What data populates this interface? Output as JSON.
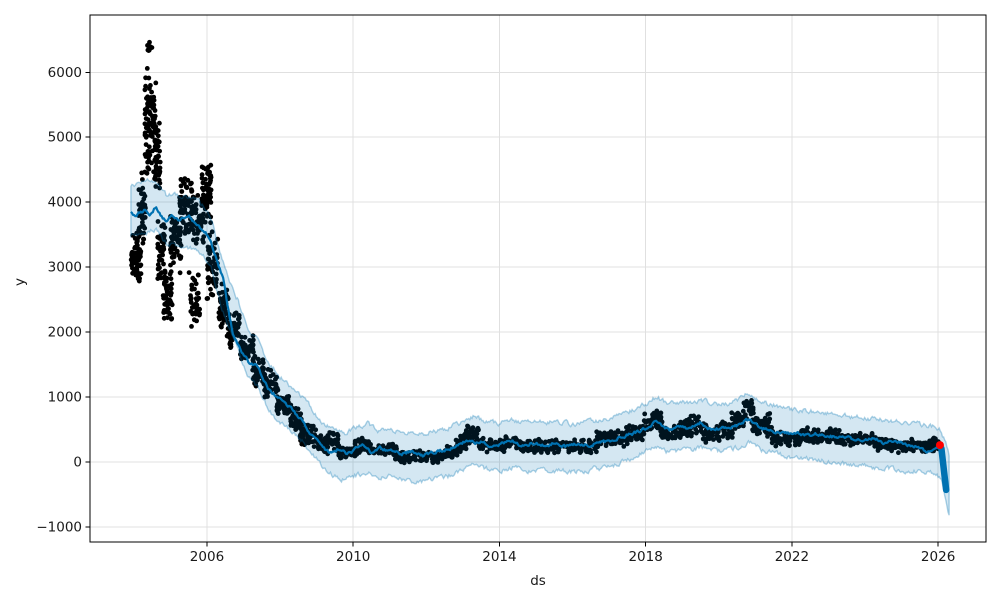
{
  "chart_data": {
    "type": "line",
    "subtype": "prophet-forecast (observed scatter + forecast line + uncertainty band)",
    "title": "",
    "xlabel": "ds",
    "ylabel": "y",
    "grid": true,
    "legend": "none",
    "xlim": [
      2002.8,
      2027.31
    ],
    "ylim": [
      -1232,
      6882
    ],
    "x_ticks": {
      "values": [
        2006,
        2010,
        2014,
        2018,
        2022,
        2026
      ],
      "labels": [
        "2006",
        "2010",
        "2014",
        "2018",
        "2022",
        "2026"
      ]
    },
    "y_ticks": {
      "values": [
        -1000,
        0,
        1000,
        2000,
        3000,
        4000,
        5000,
        6000
      ],
      "labels": [
        "−1000",
        "0",
        "1000",
        "2000",
        "3000",
        "4000",
        "5000",
        "6000"
      ]
    },
    "colors": {
      "observed": "#000000",
      "forecast": "#0072b2",
      "band_fill": "#0072b2",
      "band_fill_opacity": 0.17,
      "band_edge_opacity": 0.32,
      "latest_point": "#ff0000",
      "grid": "#e0e0e0",
      "spine": "#000000",
      "tick_text": "#1a1a1a"
    },
    "noise": {
      "seed": 11,
      "step": 0.03,
      "line_amp": 48,
      "band_amp": 70
    },
    "series": [
      {
        "name": "observed",
        "kind": "scatter",
        "marker_radius": 2.4,
        "segments_format": [
          "t_start",
          "t_end",
          "y_min",
          "y_max",
          "n_points"
        ],
        "segments": [
          [
            2003.92,
            2004.2,
            2700,
            3600,
            70
          ],
          [
            2004.12,
            2004.32,
            3300,
            4500,
            45
          ],
          [
            2004.3,
            2004.62,
            4400,
            6150,
            95
          ],
          [
            2004.36,
            2004.5,
            6250,
            6550,
            8
          ],
          [
            2004.55,
            2004.72,
            4100,
            5250,
            40
          ],
          [
            2004.65,
            2004.85,
            2700,
            3800,
            45
          ],
          [
            2004.8,
            2005.05,
            2050,
            3000,
            55
          ],
          [
            2005.0,
            2005.3,
            2900,
            3900,
            60
          ],
          [
            2005.25,
            2005.6,
            3400,
            4450,
            70
          ],
          [
            2005.5,
            2005.8,
            1950,
            3100,
            40
          ],
          [
            2005.6,
            2005.92,
            3300,
            4150,
            50
          ],
          [
            2005.85,
            2006.12,
            3600,
            4700,
            65
          ],
          [
            2006.0,
            2006.3,
            2400,
            3600,
            55
          ],
          [
            2006.3,
            2006.6,
            2000,
            2800,
            50
          ],
          [
            2006.55,
            2006.9,
            1700,
            2350,
            50
          ],
          [
            2006.9,
            2007.3,
            1480,
            1980,
            55
          ],
          [
            2007.25,
            2007.6,
            1100,
            1650,
            50
          ],
          [
            2007.55,
            2007.95,
            950,
            1450,
            45
          ],
          [
            2007.9,
            2008.3,
            650,
            1100,
            50
          ],
          [
            2008.25,
            2008.6,
            450,
            850,
            45
          ],
          [
            2008.55,
            2009.0,
            220,
            600,
            50
          ],
          [
            2009.0,
            2009.35,
            100,
            420,
            40
          ],
          [
            2009.3,
            2009.6,
            170,
            480,
            30
          ],
          [
            2009.55,
            2010.1,
            40,
            280,
            55
          ],
          [
            2010.05,
            2010.45,
            140,
            370,
            40
          ],
          [
            2010.4,
            2011.2,
            70,
            290,
            80
          ],
          [
            2011.15,
            2012.55,
            -20,
            180,
            130
          ],
          [
            2012.5,
            2012.85,
            50,
            250,
            35
          ],
          [
            2012.8,
            2013.1,
            130,
            420,
            35
          ],
          [
            2013.05,
            2013.45,
            250,
            580,
            40
          ],
          [
            2013.4,
            2014.2,
            140,
            370,
            75
          ],
          [
            2014.15,
            2014.5,
            200,
            430,
            30
          ],
          [
            2014.45,
            2016.7,
            120,
            360,
            200
          ],
          [
            2016.65,
            2017.5,
            220,
            500,
            80
          ],
          [
            2017.45,
            2018.0,
            300,
            610,
            50
          ],
          [
            2017.95,
            2018.45,
            450,
            860,
            50
          ],
          [
            2018.4,
            2018.95,
            320,
            570,
            50
          ],
          [
            2018.9,
            2019.6,
            380,
            730,
            65
          ],
          [
            2019.55,
            2020.4,
            280,
            650,
            80
          ],
          [
            2020.35,
            2020.7,
            480,
            820,
            30
          ],
          [
            2020.65,
            2020.95,
            600,
            1050,
            25
          ],
          [
            2020.9,
            2021.5,
            380,
            750,
            55
          ],
          [
            2021.45,
            2022.3,
            220,
            480,
            80
          ],
          [
            2022.25,
            2023.3,
            260,
            540,
            95
          ],
          [
            2023.25,
            2024.3,
            220,
            460,
            95
          ],
          [
            2024.25,
            2025.3,
            140,
            380,
            95
          ],
          [
            2025.25,
            2026.02,
            140,
            340,
            70
          ],
          [
            2025.85,
            2026.03,
            200,
            390,
            15
          ]
        ]
      },
      {
        "name": "uncertainty-band",
        "kind": "band",
        "anchors_format": [
          "t",
          "y_lower",
          "y_upper"
        ],
        "anchors": [
          [
            2003.92,
            3480,
            4230
          ],
          [
            2004.3,
            3520,
            4330
          ],
          [
            2004.6,
            3580,
            4330
          ],
          [
            2004.9,
            3350,
            4100
          ],
          [
            2005.2,
            3350,
            4120
          ],
          [
            2005.5,
            3300,
            4080
          ],
          [
            2005.8,
            3250,
            4020
          ],
          [
            2006.1,
            3050,
            3800
          ],
          [
            2006.35,
            2450,
            3250
          ],
          [
            2006.6,
            2050,
            2800
          ],
          [
            2006.85,
            1750,
            2500
          ],
          [
            2007.1,
            1300,
            2050
          ],
          [
            2007.4,
            1150,
            1880
          ],
          [
            2007.7,
            780,
            1500
          ],
          [
            2008.0,
            600,
            1320
          ],
          [
            2008.3,
            470,
            1160
          ],
          [
            2008.6,
            330,
            1010
          ],
          [
            2008.9,
            120,
            790
          ],
          [
            2009.15,
            -80,
            580
          ],
          [
            2009.5,
            -220,
            510
          ],
          [
            2009.8,
            -280,
            450
          ],
          [
            2010.1,
            -200,
            530
          ],
          [
            2010.4,
            -160,
            590
          ],
          [
            2010.7,
            -250,
            480
          ],
          [
            2011.0,
            -220,
            500
          ],
          [
            2011.4,
            -280,
            460
          ],
          [
            2011.8,
            -310,
            430
          ],
          [
            2012.2,
            -260,
            470
          ],
          [
            2012.6,
            -220,
            520
          ],
          [
            2013.0,
            -120,
            620
          ],
          [
            2013.3,
            -30,
            710
          ],
          [
            2013.6,
            -100,
            630
          ],
          [
            2014.0,
            -140,
            600
          ],
          [
            2014.4,
            -80,
            650
          ],
          [
            2014.8,
            -140,
            600
          ],
          [
            2015.2,
            -120,
            620
          ],
          [
            2015.6,
            -140,
            610
          ],
          [
            2016.0,
            -150,
            590
          ],
          [
            2016.4,
            -130,
            620
          ],
          [
            2016.8,
            -90,
            650
          ],
          [
            2017.2,
            -40,
            700
          ],
          [
            2017.6,
            60,
            780
          ],
          [
            2018.0,
            160,
            890
          ],
          [
            2018.3,
            240,
            1010
          ],
          [
            2018.6,
            150,
            890
          ],
          [
            2019.0,
            180,
            910
          ],
          [
            2019.5,
            220,
            950
          ],
          [
            2020.0,
            160,
            880
          ],
          [
            2020.4,
            200,
            920
          ],
          [
            2020.8,
            300,
            1060
          ],
          [
            2021.2,
            180,
            930
          ],
          [
            2021.6,
            120,
            860
          ],
          [
            2022.0,
            80,
            810
          ],
          [
            2022.5,
            40,
            780
          ],
          [
            2023.0,
            0,
            750
          ],
          [
            2023.5,
            -40,
            710
          ],
          [
            2024.0,
            -70,
            680
          ],
          [
            2024.5,
            -100,
            650
          ],
          [
            2025.0,
            -130,
            620
          ],
          [
            2025.5,
            -150,
            580
          ],
          [
            2025.9,
            -170,
            540
          ],
          [
            2026.08,
            -260,
            480
          ],
          [
            2026.2,
            -570,
            300
          ],
          [
            2026.3,
            -820,
            110
          ]
        ]
      },
      {
        "name": "forecast",
        "kind": "line",
        "line_width": 2.2,
        "anchors_format": [
          "t",
          "yhat"
        ],
        "anchors": [
          [
            2003.92,
            3850
          ],
          [
            2004.05,
            3760
          ],
          [
            2004.15,
            3820
          ],
          [
            2004.3,
            3880
          ],
          [
            2004.45,
            3800
          ],
          [
            2004.6,
            3940
          ],
          [
            2004.75,
            3780
          ],
          [
            2004.9,
            3700
          ],
          [
            2005.05,
            3790
          ],
          [
            2005.2,
            3720
          ],
          [
            2005.35,
            3760
          ],
          [
            2005.5,
            3800
          ],
          [
            2005.65,
            3700
          ],
          [
            2005.8,
            3620
          ],
          [
            2005.95,
            3550
          ],
          [
            2006.1,
            3420
          ],
          [
            2006.3,
            3050
          ],
          [
            2006.45,
            2820
          ],
          [
            2006.55,
            2450
          ],
          [
            2006.7,
            2000
          ],
          [
            2006.85,
            1820
          ],
          [
            2007.0,
            1660
          ],
          [
            2007.2,
            1480
          ],
          [
            2007.35,
            1530
          ],
          [
            2007.5,
            1320
          ],
          [
            2007.7,
            1120
          ],
          [
            2007.9,
            1010
          ],
          [
            2008.1,
            930
          ],
          [
            2008.3,
            820
          ],
          [
            2008.5,
            700
          ],
          [
            2008.65,
            600
          ],
          [
            2008.8,
            450
          ],
          [
            2009.0,
            330
          ],
          [
            2009.2,
            200
          ],
          [
            2009.45,
            140
          ],
          [
            2009.6,
            200
          ],
          [
            2009.8,
            130
          ],
          [
            2010.0,
            170
          ],
          [
            2010.25,
            265
          ],
          [
            2010.5,
            145
          ],
          [
            2010.75,
            225
          ],
          [
            2011.0,
            175
          ],
          [
            2011.3,
            120
          ],
          [
            2011.6,
            165
          ],
          [
            2011.9,
            95
          ],
          [
            2012.2,
            145
          ],
          [
            2012.5,
            175
          ],
          [
            2012.8,
            235
          ],
          [
            2013.0,
            290
          ],
          [
            2013.2,
            360
          ],
          [
            2013.35,
            300
          ],
          [
            2013.5,
            335
          ],
          [
            2013.7,
            255
          ],
          [
            2014.0,
            275
          ],
          [
            2014.3,
            325
          ],
          [
            2014.6,
            255
          ],
          [
            2014.9,
            295
          ],
          [
            2015.2,
            255
          ],
          [
            2015.5,
            295
          ],
          [
            2015.8,
            245
          ],
          [
            2016.1,
            275
          ],
          [
            2016.4,
            255
          ],
          [
            2016.7,
            295
          ],
          [
            2017.0,
            325
          ],
          [
            2017.3,
            385
          ],
          [
            2017.6,
            430
          ],
          [
            2017.9,
            490
          ],
          [
            2018.1,
            550
          ],
          [
            2018.3,
            640
          ],
          [
            2018.5,
            530
          ],
          [
            2018.7,
            490
          ],
          [
            2018.9,
            545
          ],
          [
            2019.1,
            505
          ],
          [
            2019.3,
            565
          ],
          [
            2019.5,
            605
          ],
          [
            2019.7,
            525
          ],
          [
            2019.9,
            485
          ],
          [
            2020.1,
            545
          ],
          [
            2020.3,
            505
          ],
          [
            2020.5,
            565
          ],
          [
            2020.7,
            625
          ],
          [
            2020.85,
            655
          ],
          [
            2021.0,
            585
          ],
          [
            2021.2,
            525
          ],
          [
            2021.5,
            475
          ],
          [
            2021.8,
            435
          ],
          [
            2022.1,
            455
          ],
          [
            2022.4,
            405
          ],
          [
            2022.7,
            435
          ],
          [
            2023.0,
            385
          ],
          [
            2023.3,
            405
          ],
          [
            2023.6,
            355
          ],
          [
            2023.9,
            335
          ],
          [
            2024.2,
            355
          ],
          [
            2024.5,
            305
          ],
          [
            2024.8,
            325
          ],
          [
            2025.1,
            275
          ],
          [
            2025.35,
            245
          ],
          [
            2025.6,
            185
          ],
          [
            2025.8,
            155
          ],
          [
            2025.95,
            215
          ],
          [
            2026.05,
            245
          ]
        ]
      },
      {
        "name": "forecast-plunge-tail",
        "kind": "segment",
        "from": [
          2026.09,
          210
        ],
        "to": [
          2026.22,
          -430
        ],
        "width": 6.5
      },
      {
        "name": "latest-point",
        "kind": "point",
        "x": 2026.05,
        "y": 260,
        "radius": 4.0
      }
    ]
  }
}
